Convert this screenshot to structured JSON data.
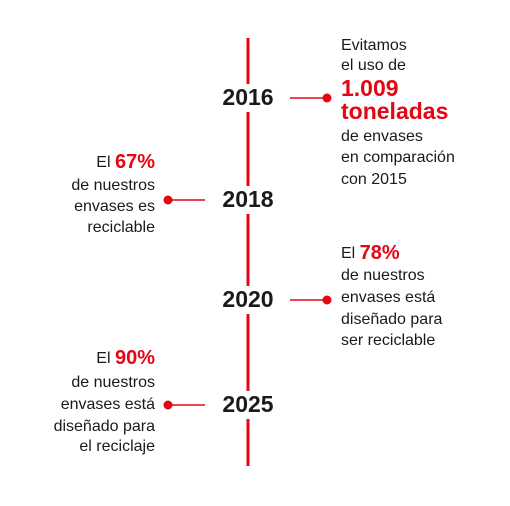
{
  "accent_color": "#e30613",
  "items": [
    {
      "year": "2016",
      "lines": [
        [
          {
            "text": "Evitamos"
          }
        ],
        [
          {
            "text": "el uso de"
          }
        ],
        [
          {
            "text": "1.009",
            "accent": true
          }
        ],
        [
          {
            "text": "toneladas",
            "accent": true
          }
        ],
        [
          {
            "text": "de envases"
          }
        ],
        [
          {
            "text": "en comparación"
          }
        ],
        [
          {
            "text": "con 2015"
          }
        ]
      ]
    },
    {
      "year": "2018",
      "lines": [
        [
          {
            "text": "El "
          },
          {
            "text": "67%",
            "accent": true
          }
        ],
        [
          {
            "text": "de nuestros"
          }
        ],
        [
          {
            "text": "envases es"
          }
        ],
        [
          {
            "text": "reciclable"
          }
        ]
      ]
    },
    {
      "year": "2020",
      "lines": [
        [
          {
            "text": "El "
          },
          {
            "text": "78%",
            "accent": true
          }
        ],
        [
          {
            "text": "de nuestros"
          }
        ],
        [
          {
            "text": "envases está"
          }
        ],
        [
          {
            "text": "diseñado para"
          }
        ],
        [
          {
            "text": "ser reciclable"
          }
        ]
      ]
    },
    {
      "year": "2025",
      "lines": [
        [
          {
            "text": "El "
          },
          {
            "text": "90%",
            "accent": true
          }
        ],
        [
          {
            "text": "de nuestros"
          }
        ],
        [
          {
            "text": "envases está"
          }
        ],
        [
          {
            "text": "diseñado para"
          }
        ],
        [
          {
            "text": "el reciclaje"
          }
        ]
      ]
    }
  ]
}
